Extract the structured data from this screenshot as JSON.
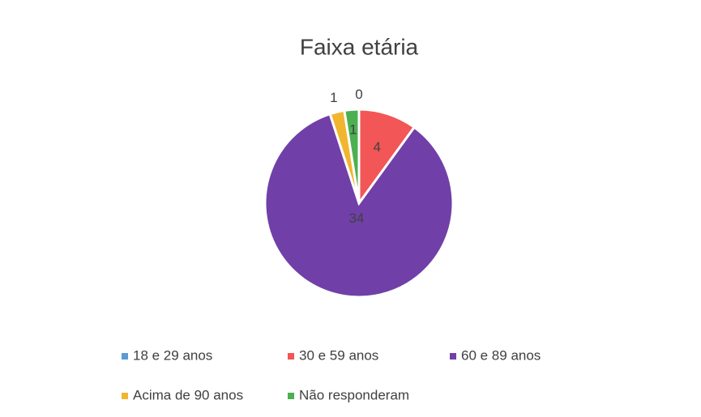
{
  "chart_data": {
    "type": "pie",
    "title": "Faixa etária",
    "categories": [
      "18 e 29 anos",
      "30 e 59 anos",
      "60 e 89 anos",
      "Acima de 90 anos",
      "Não responderam"
    ],
    "values": [
      0,
      4,
      34,
      1,
      1
    ],
    "colors": [
      "#5b9bd5",
      "#f25656",
      "#7040a8",
      "#f2b530",
      "#4cb050"
    ],
    "legend": "bottom"
  }
}
